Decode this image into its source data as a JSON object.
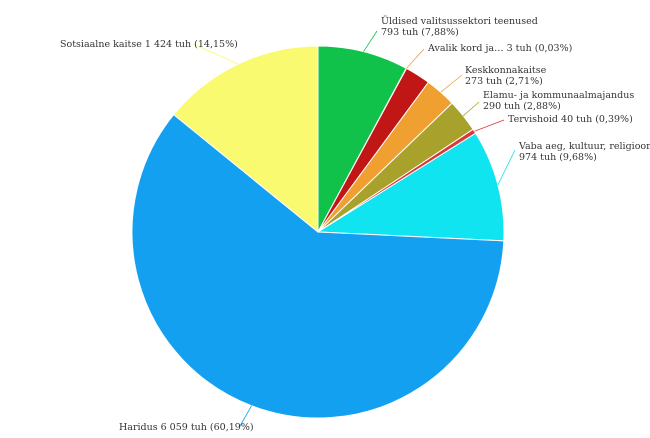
{
  "chart_data": {
    "type": "pie",
    "unit": "tuh",
    "slices": [
      {
        "name": "Üldised valitsussektori teenused",
        "value": 793,
        "value_label": "793 tuh",
        "percent_label": "(7,88%)",
        "color": "#10c24a"
      },
      {
        "name": "Avalik kord ja…",
        "value": 3,
        "value_label": "3 tuh",
        "percent_label": "(0,03%)",
        "color": "#e8a03a"
      },
      {
        "name": "",
        "value": 223,
        "value_label": "",
        "percent_label": "",
        "color": "#c01616"
      },
      {
        "name": "Keskkonnakaitse",
        "value": 273,
        "value_label": "273 tuh",
        "percent_label": "(2,71%)",
        "color": "#f0a030"
      },
      {
        "name": "Elamu- ja kommunaalmajandus",
        "value": 290,
        "value_label": "290 tuh",
        "percent_label": "(2,88%)",
        "color": "#a8a22c"
      },
      {
        "name": "Tervishoid",
        "value": 40,
        "value_label": "40 tuh",
        "percent_label": "(0,39%)",
        "color": "#d83838"
      },
      {
        "name": "Vaba aeg, kultuur, religioon",
        "value": 974,
        "value_label": "974 tuh",
        "percent_label": "(9,68%)",
        "color": "#10e4f0"
      },
      {
        "name": "Haridus",
        "value": 6059,
        "value_label": "6 059 tuh",
        "percent_label": "(60,19%)",
        "color": "#13a0f0"
      },
      {
        "name": "Sotsiaalne kaitse",
        "value": 1424,
        "value_label": "1 424 tuh",
        "percent_label": "(14,15%)",
        "color": "#fafa70"
      }
    ],
    "labels": [
      {
        "lines": [
          "Üldised valitsussektori teenused",
          "793 tuh (7,88%)"
        ]
      },
      {
        "lines": [
          "Avalik kord ja… 3 tuh (0,03%)"
        ]
      },
      null,
      {
        "lines": [
          "Keskkonnakaitse",
          "273 tuh (2,71%)"
        ]
      },
      {
        "lines": [
          "Elamu- ja kommunaalmajandus",
          "290 tuh (2,88%)"
        ]
      },
      {
        "lines": [
          "Tervishoid 40 tuh (0,39%)"
        ]
      },
      {
        "lines": [
          "Vaba aeg, kultuur, religioon",
          "974 tuh (9,68%)"
        ]
      },
      {
        "lines": [
          "Haridus 6 059 tuh (60,19%)"
        ]
      },
      {
        "lines": [
          "Sotsiaalne kaitse 1 424 tuh (14,15%)"
        ]
      }
    ]
  }
}
